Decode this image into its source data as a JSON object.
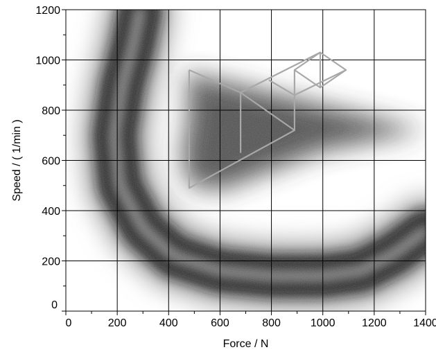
{
  "chart_data": {
    "type": "heatmap",
    "title": "",
    "xlabel": "Force / N",
    "ylabel": "Speed / ( 1/min )",
    "xlim": [
      0,
      1400
    ],
    "ylim": [
      0,
      1200
    ],
    "x_ticks": [
      0,
      200,
      400,
      600,
      800,
      1000,
      1200,
      1400
    ],
    "y_ticks": [
      0,
      200,
      400,
      600,
      800,
      1000,
      1200
    ],
    "grid": true,
    "colormap": "grayscale (white = low density, black = high density)",
    "density_band_centerline": [
      {
        "x": 290,
        "y": 1200
      },
      {
        "x": 260,
        "y": 1050
      },
      {
        "x": 220,
        "y": 900
      },
      {
        "x": 190,
        "y": 700
      },
      {
        "x": 210,
        "y": 500
      },
      {
        "x": 300,
        "y": 330
      },
      {
        "x": 420,
        "y": 220
      },
      {
        "x": 600,
        "y": 160
      },
      {
        "x": 800,
        "y": 140
      },
      {
        "x": 1000,
        "y": 140
      },
      {
        "x": 1150,
        "y": 160
      },
      {
        "x": 1280,
        "y": 230
      },
      {
        "x": 1400,
        "y": 320
      }
    ],
    "secondary_region": [
      {
        "x": 1400,
        "y": 720
      },
      {
        "x": 1200,
        "y": 680
      },
      {
        "x": 1000,
        "y": 640
      },
      {
        "x": 800,
        "y": 560
      },
      {
        "x": 600,
        "y": 480
      },
      {
        "x": 480,
        "y": 500
      },
      {
        "x": 450,
        "y": 620
      },
      {
        "x": 480,
        "y": 780
      },
      {
        "x": 470,
        "y": 950
      }
    ],
    "overlay_lines": [
      [
        {
          "x": 480,
          "y": 960
        },
        {
          "x": 480,
          "y": 490
        },
        {
          "x": 890,
          "y": 720
        },
        {
          "x": 680,
          "y": 870
        },
        {
          "x": 480,
          "y": 960
        }
      ],
      [
        {
          "x": 680,
          "y": 870
        },
        {
          "x": 680,
          "y": 630
        }
      ],
      [
        {
          "x": 680,
          "y": 870
        },
        {
          "x": 990,
          "y": 1030
        },
        {
          "x": 1090,
          "y": 960
        },
        {
          "x": 890,
          "y": 860
        },
        {
          "x": 890,
          "y": 720
        }
      ],
      [
        {
          "x": 890,
          "y": 860
        },
        {
          "x": 790,
          "y": 920
        }
      ],
      [
        {
          "x": 890,
          "y": 860
        },
        {
          "x": 890,
          "y": 960
        },
        {
          "x": 990,
          "y": 890
        }
      ],
      [
        {
          "x": 890,
          "y": 960
        },
        {
          "x": 990,
          "y": 1030
        }
      ],
      [
        {
          "x": 990,
          "y": 1030
        },
        {
          "x": 990,
          "y": 890
        },
        {
          "x": 1090,
          "y": 960
        }
      ]
    ]
  }
}
